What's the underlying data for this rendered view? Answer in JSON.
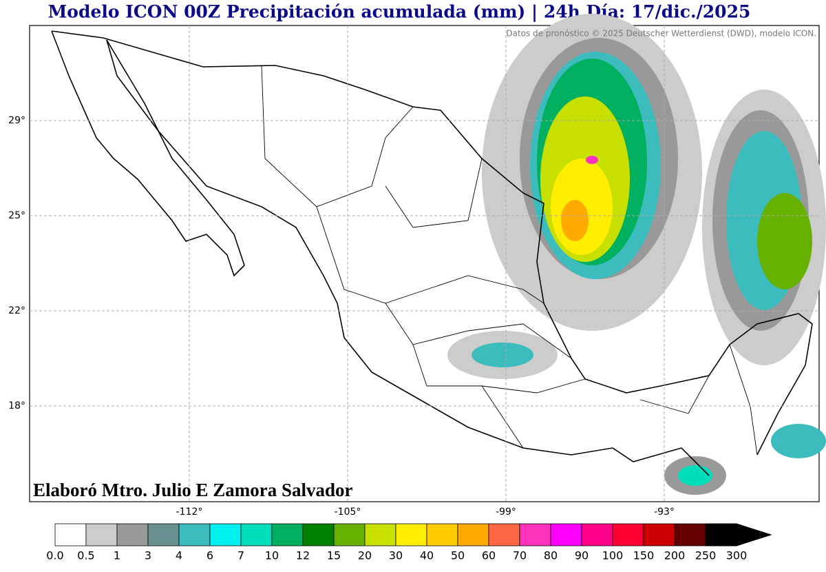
{
  "title": "Modelo ICON 00Z Precipitación acumulada (mm) | 24h Día: 17/dic./2025",
  "credit": "Datos de pronóstico © 2025 Deutscher Wetterdienst (DWD), modelo ICON.",
  "author": "Elaboró Mtro. Julio E Zamora Salvador",
  "lat_labels": [
    "29°",
    "25°",
    "22°",
    "18°"
  ],
  "lon_labels": [
    "-112°",
    "-105°",
    "-99°",
    "-93°"
  ],
  "colorbar": {
    "levels": [
      "0.0",
      "0.5",
      "1",
      "3",
      "4",
      "6",
      "7",
      "10",
      "12",
      "15",
      "20",
      "30",
      "40",
      "50",
      "60",
      "70",
      "80",
      "90",
      "100",
      "150",
      "200",
      "250",
      "300"
    ],
    "colors": [
      "#ffffff",
      "#cccccc",
      "#999999",
      "#6a8f8f",
      "#3cbcbc",
      "#00f0f0",
      "#00ddbb",
      "#00b060",
      "#008000",
      "#66b000",
      "#c8e000",
      "#ffee00",
      "#ffcc00",
      "#ffaa00",
      "#ff6644",
      "#ff33bb",
      "#ff00ff",
      "#ff0088",
      "#ff0033",
      "#cc0000",
      "#660000",
      "#000000"
    ]
  }
}
